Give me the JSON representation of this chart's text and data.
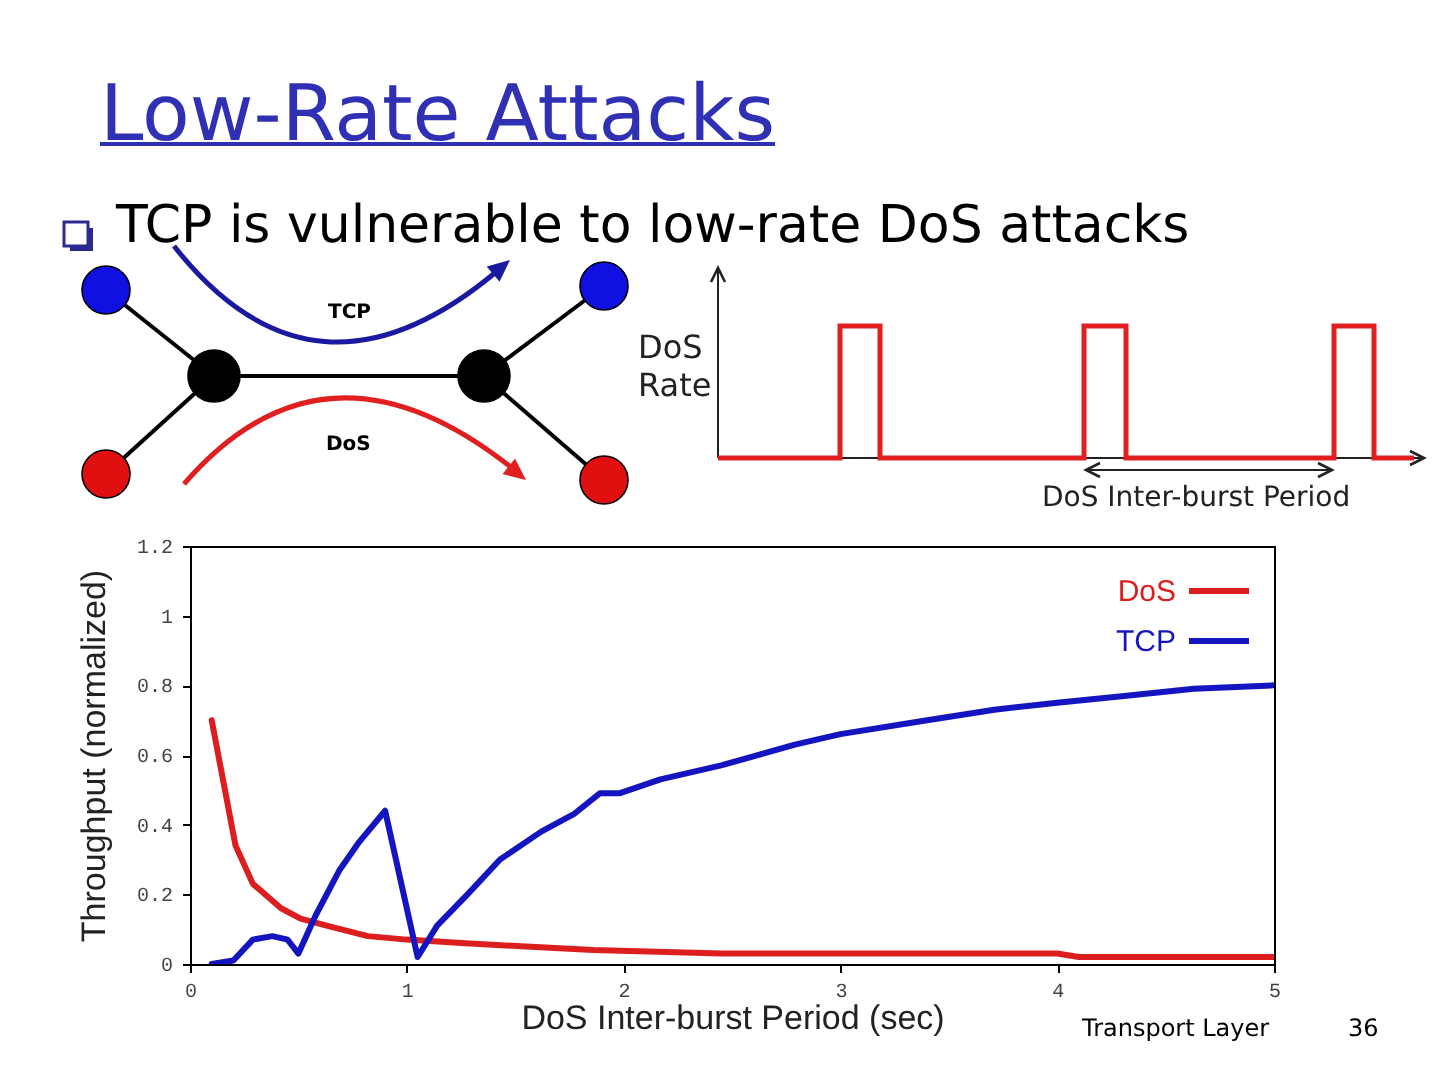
{
  "chart_data": {
    "type": "line",
    "title": "Low-Rate Attacks",
    "subtitle": "TCP is vulnerable to low-rate DoS attacks",
    "xlabel": "DoS Inter-burst Period (sec)",
    "ylabel": "Throughput (normalized)",
    "annotations": [
      "TCP",
      "DoS",
      "DoS Rate",
      "DoS Inter-burst Period",
      "Transport Layer",
      "36"
    ],
    "series": [
      {
        "name": "DoS",
        "color": "#dc1e1e",
        "x": [
          0.1,
          0.21,
          0.29,
          0.42,
          0.51,
          0.63,
          0.82,
          1.0,
          1.25,
          1.55,
          1.86,
          2.45,
          3.0,
          4.0,
          4.1,
          5.0
        ],
        "values": [
          0.7,
          0.34,
          0.23,
          0.16,
          0.13,
          0.11,
          0.08,
          0.07,
          0.06,
          0.05,
          0.04,
          0.03,
          0.03,
          0.03,
          0.02,
          0.02
        ]
      },
      {
        "name": "TCP",
        "color": "#1414c0",
        "x": [
          0.1,
          0.2,
          0.29,
          0.38,
          0.45,
          0.5,
          0.58,
          0.69,
          0.78,
          0.9,
          1.05,
          1.14,
          1.28,
          1.43,
          1.62,
          1.77,
          1.89,
          1.98,
          2.17,
          2.45,
          2.79,
          3.0,
          3.4,
          3.71,
          4.0,
          4.32,
          4.63,
          5.0
        ],
        "values": [
          0.0,
          0.01,
          0.07,
          0.08,
          0.07,
          0.03,
          0.14,
          0.27,
          0.35,
          0.44,
          0.02,
          0.11,
          0.2,
          0.3,
          0.38,
          0.43,
          0.49,
          0.49,
          0.53,
          0.57,
          0.63,
          0.66,
          0.7,
          0.73,
          0.75,
          0.77,
          0.79,
          0.8
        ]
      }
    ],
    "xlim": [
      0,
      5
    ],
    "ylim": [
      0,
      1.2
    ],
    "xticks": [
      0,
      1,
      2,
      3,
      4,
      5
    ],
    "yticks": [
      0,
      0.2,
      0.4,
      0.6,
      0.8,
      1,
      1.2
    ],
    "grid": false,
    "legend": "top right"
  }
}
